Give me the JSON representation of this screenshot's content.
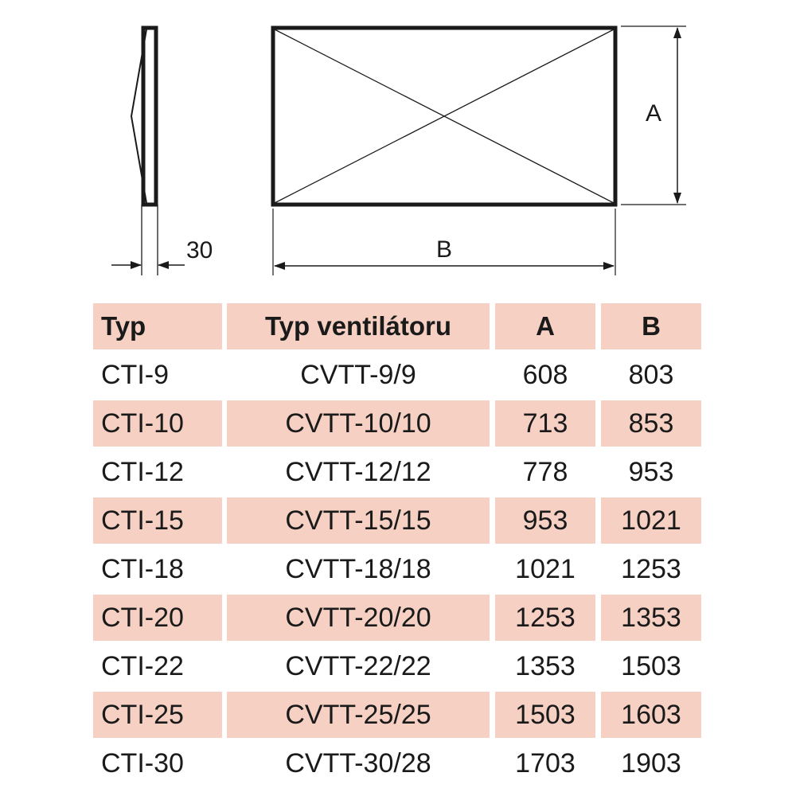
{
  "drawing": {
    "label_depth": "30",
    "label_a": "A",
    "label_b": "B"
  },
  "table": {
    "headers": {
      "typ": "Typ",
      "ventilator": "Typ ventilátoru",
      "a": "A",
      "b": "B"
    },
    "rows": [
      {
        "typ": "CTI-9",
        "ventilator": "CVTT-9/9",
        "a": "608",
        "b": "803"
      },
      {
        "typ": "CTI-10",
        "ventilator": "CVTT-10/10",
        "a": "713",
        "b": "853"
      },
      {
        "typ": "CTI-12",
        "ventilator": "CVTT-12/12",
        "a": "778",
        "b": "953"
      },
      {
        "typ": "CTI-15",
        "ventilator": "CVTT-15/15",
        "a": "953",
        "b": "1021"
      },
      {
        "typ": "CTI-18",
        "ventilator": "CVTT-18/18",
        "a": "1021",
        "b": "1253"
      },
      {
        "typ": "CTI-20",
        "ventilator": "CVTT-20/20",
        "a": "1253",
        "b": "1353"
      },
      {
        "typ": "CTI-22",
        "ventilator": "CVTT-22/22",
        "a": "1353",
        "b": "1503"
      },
      {
        "typ": "CTI-25",
        "ventilator": "CVTT-25/25",
        "a": "1503",
        "b": "1603"
      },
      {
        "typ": "CTI-30",
        "ventilator": "CVTT-30/28",
        "a": "1703",
        "b": "1903"
      }
    ]
  },
  "colors": {
    "row_shade": "#f5d0c3",
    "line": "#1a1a1a"
  }
}
